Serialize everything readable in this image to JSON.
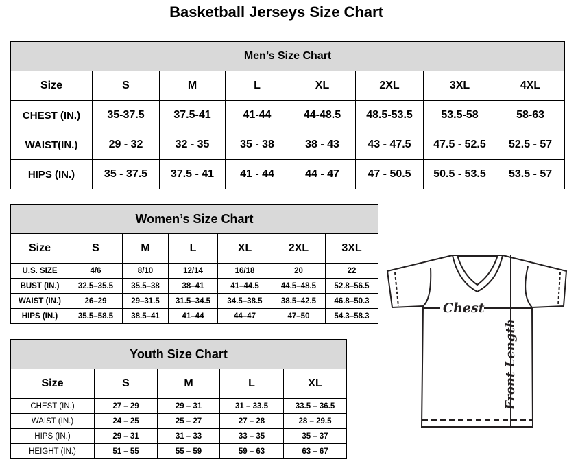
{
  "title": "Basketball Jerseys Size Chart",
  "men": {
    "title": "Men’s Size Chart",
    "headers": [
      "Size",
      "S",
      "M",
      "L",
      "XL",
      "2XL",
      "3XL",
      "4XL"
    ],
    "rows": [
      [
        "CHEST (IN.)",
        "35-37.5",
        "37.5-41",
        "41-44",
        "44-48.5",
        "48.5-53.5",
        "53.5-58",
        "58-63"
      ],
      [
        "WAIST(IN.)",
        "29 - 32",
        "32 - 35",
        "35 - 38",
        "38 - 43",
        "43 - 47.5",
        "47.5 - 52.5",
        "52.5 - 57"
      ],
      [
        "HIPS (IN.)",
        "35 - 37.5",
        "37.5 - 41",
        "41 - 44",
        "44 - 47",
        "47 - 50.5",
        "50.5 - 53.5",
        "53.5 - 57"
      ]
    ]
  },
  "women": {
    "title": "Women’s Size Chart",
    "headers": [
      "Size",
      "S",
      "M",
      "L",
      "XL",
      "2XL",
      "3XL"
    ],
    "rows": [
      [
        "U.S. SIZE",
        "4/6",
        "8/10",
        "12/14",
        "16/18",
        "20",
        "22"
      ],
      [
        "BUST (IN.)",
        "32.5–35.5",
        "35.5–38",
        "38–41",
        "41–44.5",
        "44.5–48.5",
        "52.8–56.5"
      ],
      [
        "WAIST (IN.)",
        "26–29",
        "29–31.5",
        "31.5–34.5",
        "34.5–38.5",
        "38.5–42.5",
        "46.8–50.3"
      ],
      [
        "HIPS (IN.)",
        "35.5–58.5",
        "38.5–41",
        "41–44",
        "44–47",
        "47–50",
        "54.3–58.3"
      ]
    ]
  },
  "youth": {
    "title": "Youth Size Chart",
    "headers": [
      "Size",
      "S",
      "M",
      "L",
      "XL"
    ],
    "rows": [
      [
        "CHEST (IN.)",
        "27 – 29",
        "29 – 31",
        "31 – 33.5",
        "33.5 – 36.5"
      ],
      [
        "WAIST (IN.)",
        "24 – 25",
        "25 – 27",
        "27 – 28",
        "28 – 29.5"
      ],
      [
        "HIPS (IN.)",
        "29 – 31",
        "31 – 33",
        "33 – 35",
        "35 – 37"
      ],
      [
        "HEIGHT (IN.)",
        "51 – 55",
        "55 – 59",
        "59 – 63",
        "63 – 67"
      ]
    ]
  },
  "diagram": {
    "chest_label": "Chest",
    "length_label": "Front Length"
  }
}
